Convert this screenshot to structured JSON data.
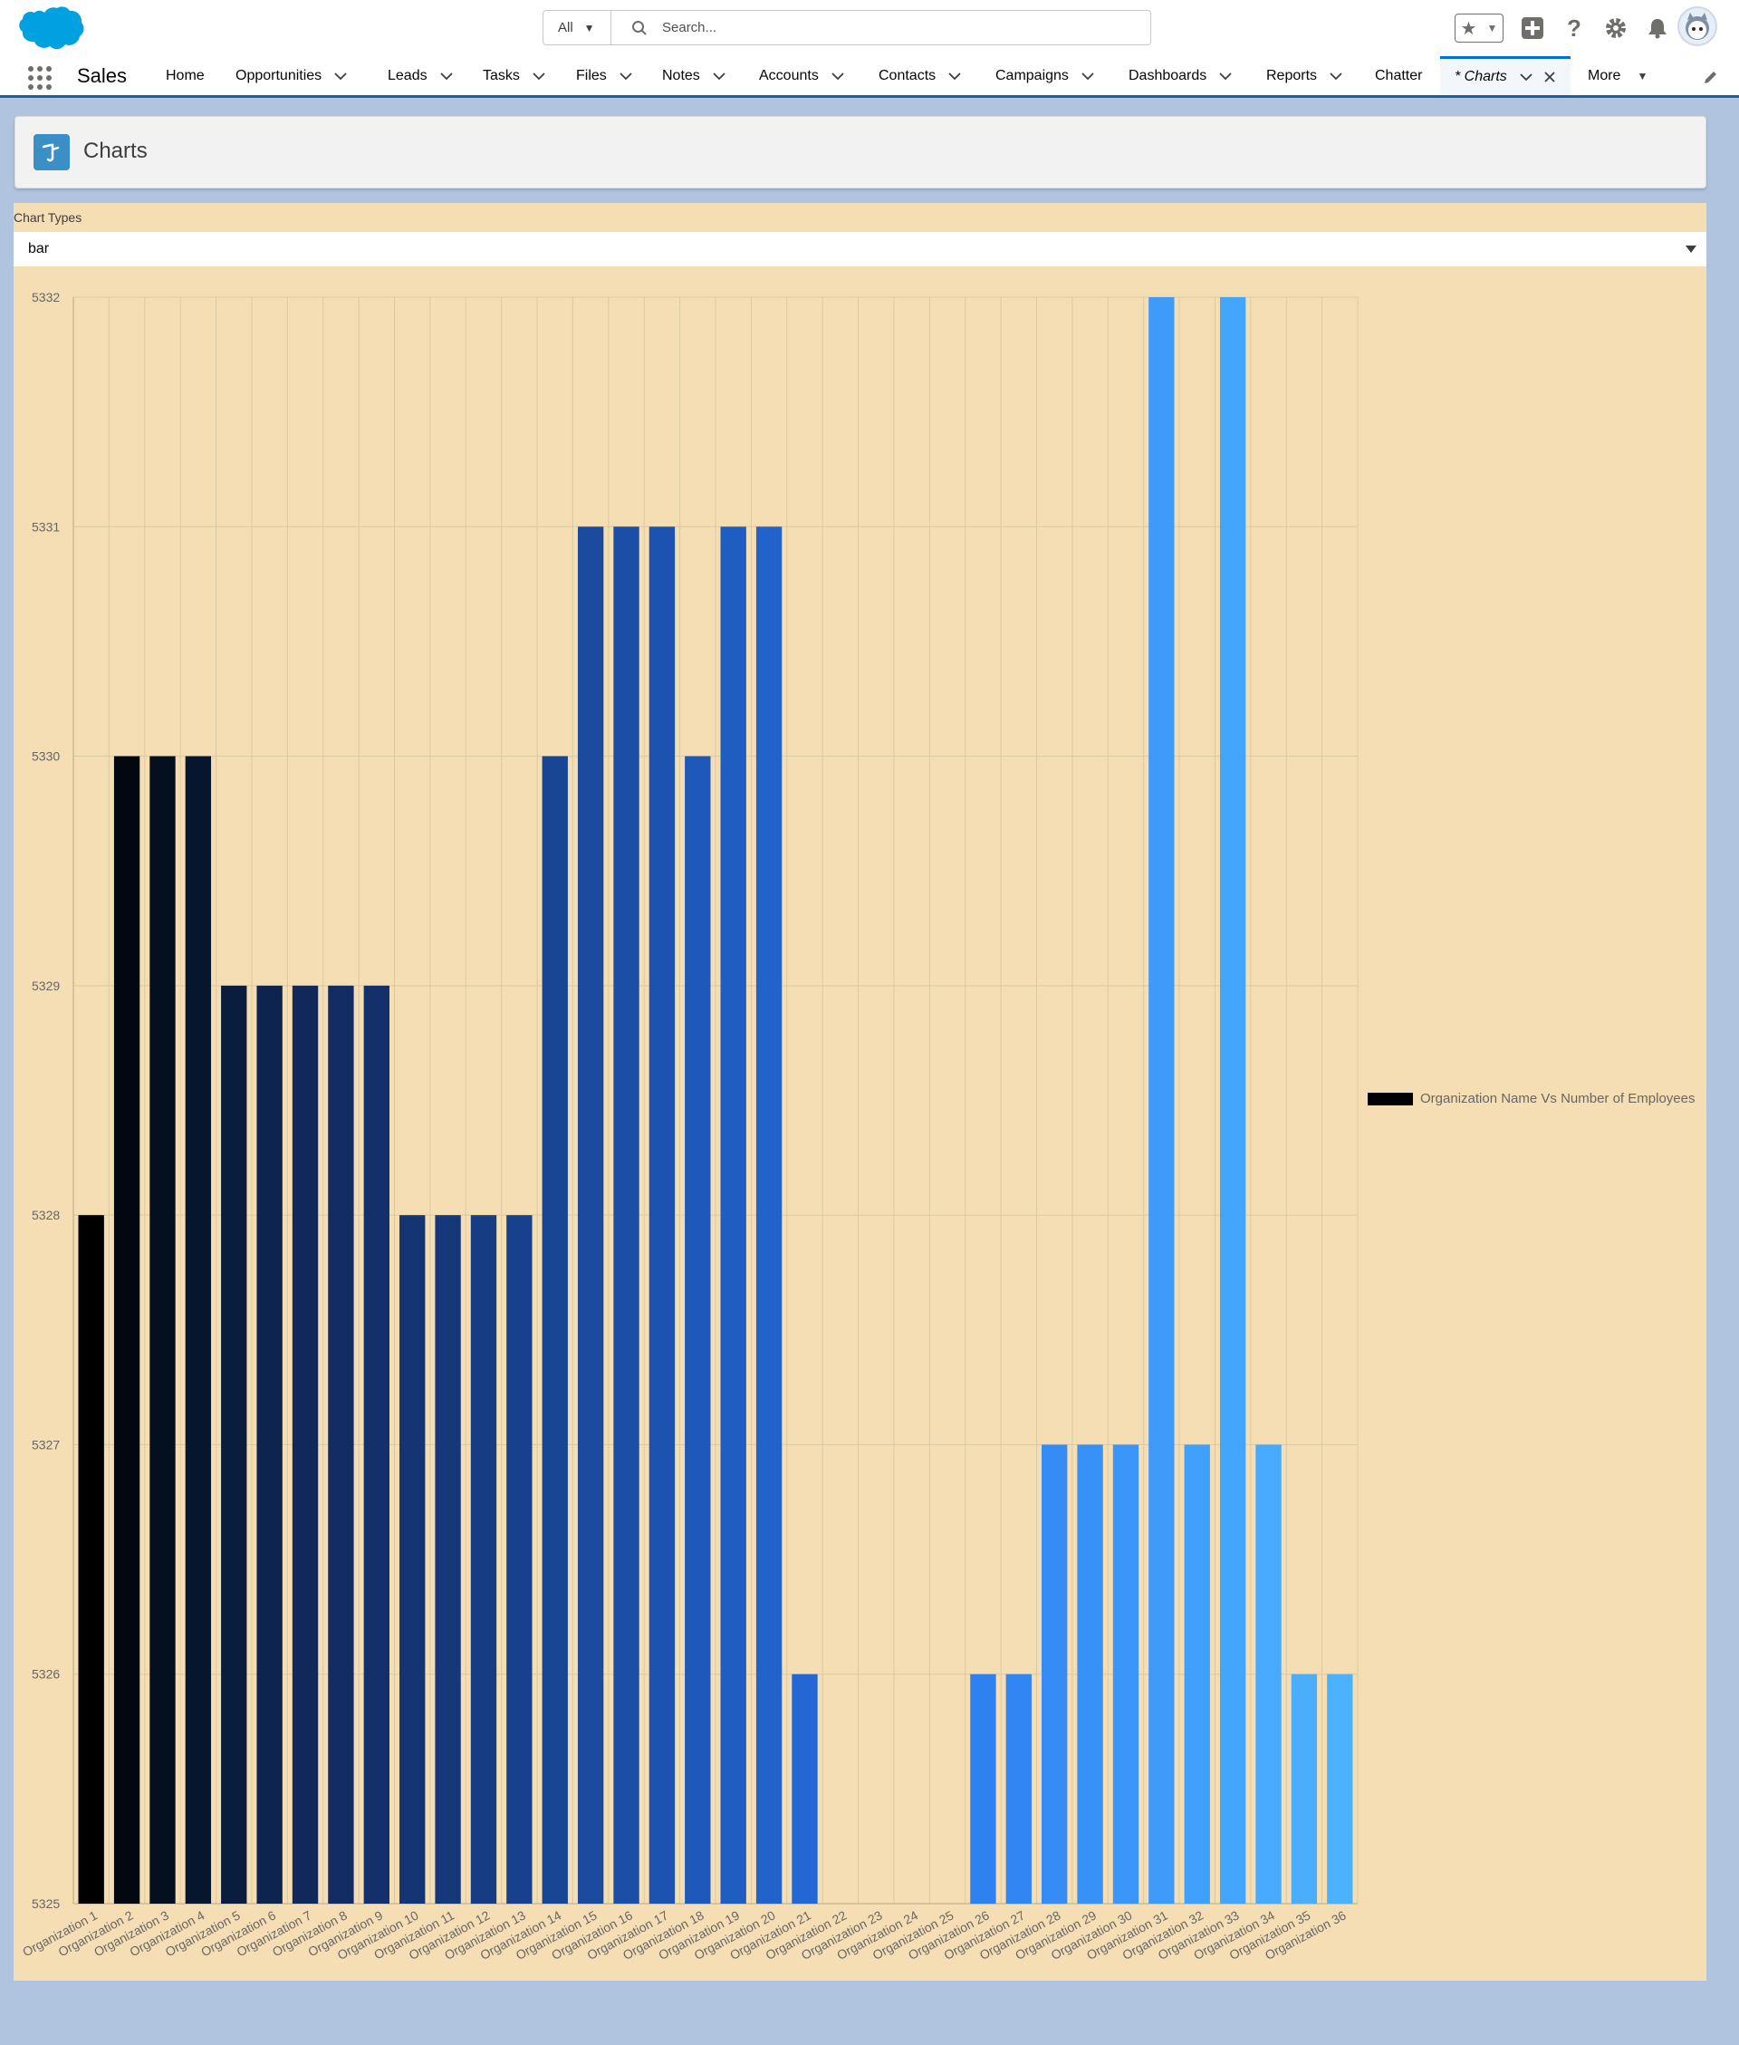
{
  "header": {
    "search": {
      "scope": "All",
      "placeholder": "Search..."
    }
  },
  "nav": {
    "app_name": "Sales",
    "items": [
      {
        "label": "Home",
        "dropdown": false
      },
      {
        "label": "Opportunities",
        "dropdown": true
      },
      {
        "label": "Leads",
        "dropdown": true
      },
      {
        "label": "Tasks",
        "dropdown": true
      },
      {
        "label": "Files",
        "dropdown": true
      },
      {
        "label": "Notes",
        "dropdown": true
      },
      {
        "label": "Accounts",
        "dropdown": true
      },
      {
        "label": "Contacts",
        "dropdown": true
      },
      {
        "label": "Campaigns",
        "dropdown": true
      },
      {
        "label": "Dashboards",
        "dropdown": true
      },
      {
        "label": "Reports",
        "dropdown": true
      },
      {
        "label": "Chatter",
        "dropdown": false
      }
    ],
    "active_tab": {
      "label": "* Charts"
    },
    "more": "More"
  },
  "page": {
    "title": "Charts",
    "chart_type_label": "Chart Types",
    "chart_type_value": "bar"
  },
  "colors": {
    "brand": "#00a1e0",
    "panel": "#f5deb3",
    "nav_border": "#1b5f9e"
  },
  "chart_data": {
    "type": "bar",
    "categories": [
      "Organization 1",
      "Organization 2",
      "Organization 3",
      "Organization 4",
      "Organization 5",
      "Organization 6",
      "Organization 7",
      "Organization 8",
      "Organization 9",
      "Organization 10",
      "Organization 11",
      "Organization 12",
      "Organization 13",
      "Organization 14",
      "Organization 15",
      "Organization 16",
      "Organization 17",
      "Organization 18",
      "Organization 19",
      "Organization 20",
      "Organization 21",
      "Organization 22",
      "Organization 23",
      "Organization 24",
      "Organization 25",
      "Organization 26",
      "Organization 27",
      "Organization 28",
      "Organization 29",
      "Organization 30",
      "Organization 31",
      "Organization 32",
      "Organization 33",
      "Organization 34",
      "Organization 35",
      "Organization 36"
    ],
    "series": [
      {
        "name": "Organization Name Vs Number of Employees",
        "values": [
          5328,
          5330,
          5330,
          5330,
          5329,
          5329,
          5329,
          5329,
          5329,
          5328,
          5328,
          5328,
          5328,
          5330,
          5331,
          5331,
          5331,
          5330,
          5331,
          5331,
          5326,
          5325,
          5325,
          5325,
          5325,
          5326,
          5326,
          5327,
          5327,
          5327,
          5332,
          5327,
          5332,
          5327,
          5326,
          5326
        ]
      }
    ],
    "bar_colors": [
      "#000000",
      "#020710",
      "#040f1f",
      "#07162f",
      "#0a1d3e",
      "#0d244e",
      "#10285a",
      "#122c63",
      "#13306b",
      "#143473",
      "#15387b",
      "#163c83",
      "#17418c",
      "#184594",
      "#1a499d",
      "#1b4ea6",
      "#1d53b0",
      "#1e58b9",
      "#205dc1",
      "#2262cb",
      "#2467d4",
      "#266cdb",
      "#2871e1",
      "#2a76e6",
      "#2c7bea",
      "#2f81ef",
      "#3286f2",
      "#358cf5",
      "#3891f7",
      "#3b96f9",
      "#3e9bfa",
      "#41a0fb",
      "#44a5fc",
      "#47aafc",
      "#4aaefd",
      "#4db2fd"
    ],
    "ylim": [
      5325,
      5332
    ],
    "yticks": [
      "5332",
      "5331",
      "5330",
      "5329",
      "5328",
      "5327",
      "5326",
      "5325"
    ],
    "grid": true,
    "legend": "right"
  }
}
